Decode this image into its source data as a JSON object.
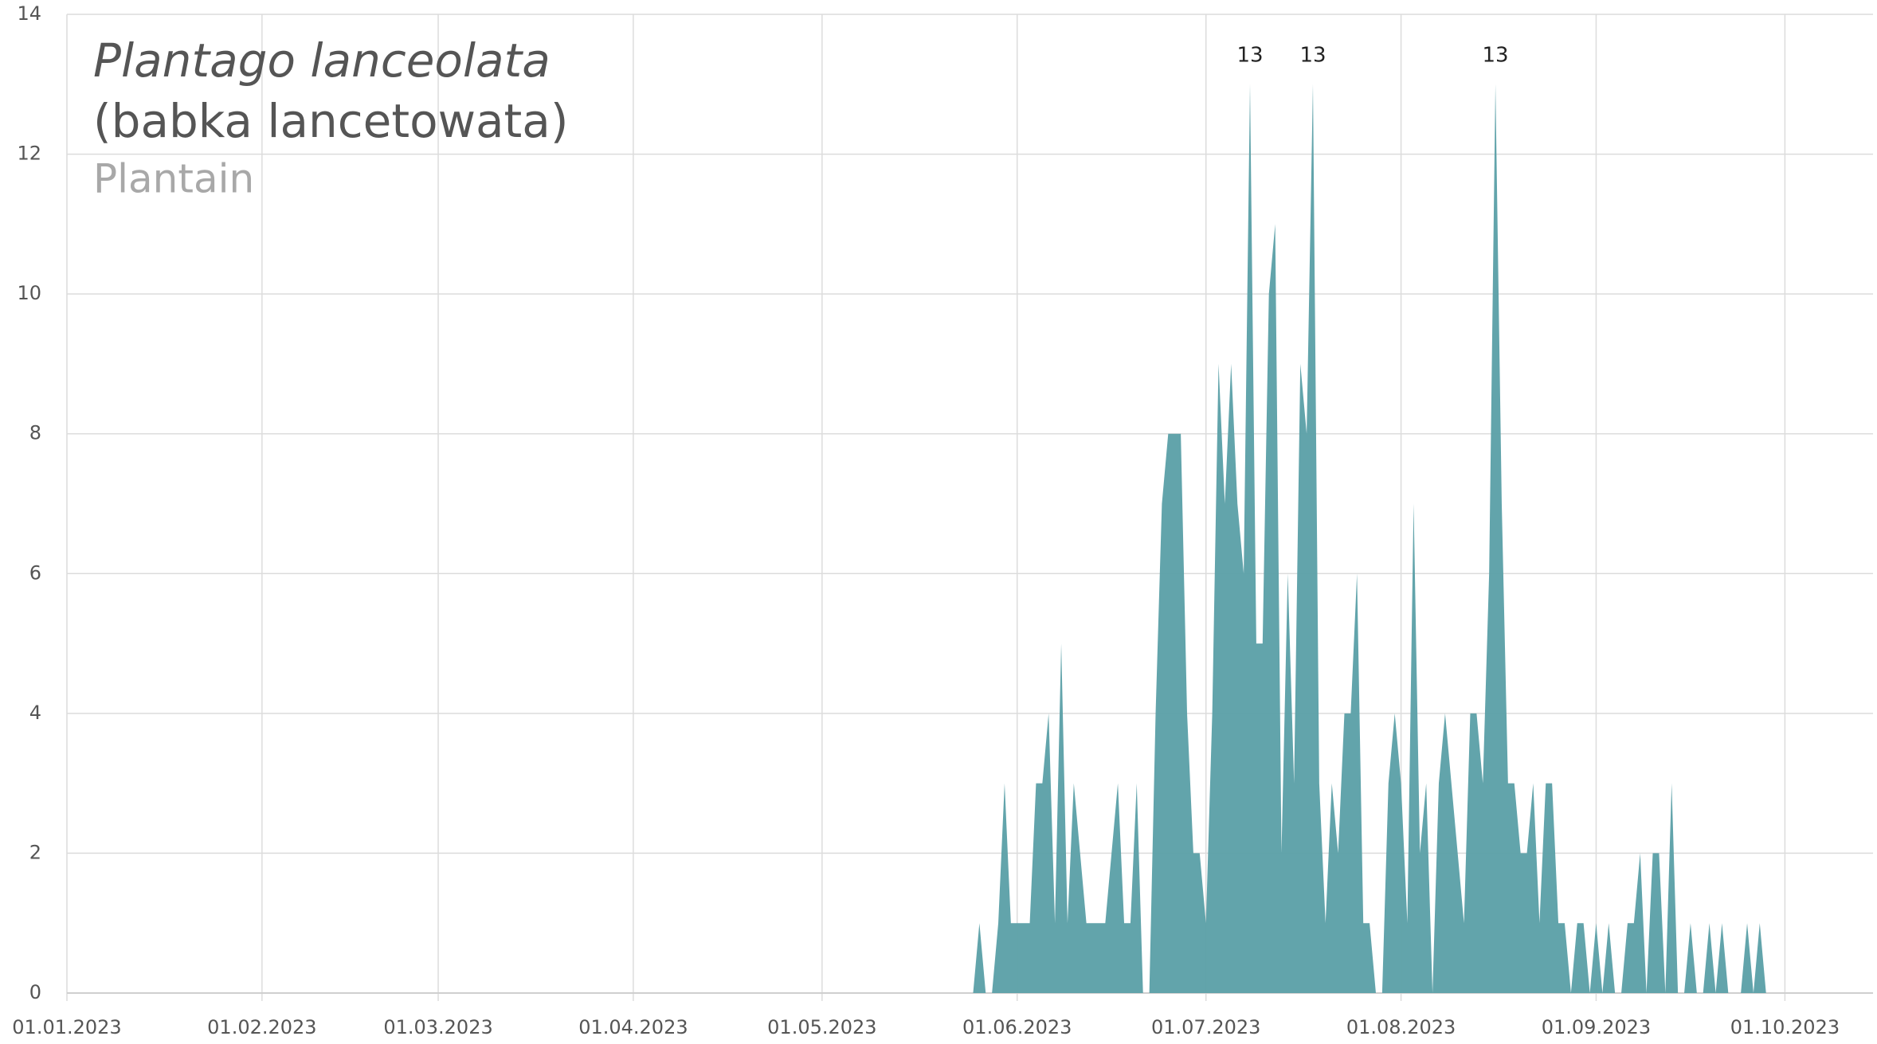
{
  "chart_data": {
    "type": "area",
    "title": "Plantago lanceolata",
    "subtitle": "(babka lancetowata)",
    "caption": "Plantain",
    "color": "#5a9fa6",
    "grid": true,
    "annotate_max": true,
    "xlim": [
      "01.01.2023",
      "15.10.2023"
    ],
    "xticks": [
      "01.01.2023",
      "01.02.2023",
      "01.03.2023",
      "01.04.2023",
      "01.05.2023",
      "01.06.2023",
      "01.07.2023",
      "01.08.2023",
      "01.09.2023",
      "01.10.2023"
    ],
    "ylim": [
      0,
      14
    ],
    "yticks": [
      0,
      2,
      4,
      6,
      8,
      10,
      12,
      14
    ],
    "x": [
      "24.05.2023",
      "25.05.2023",
      "26.05.2023",
      "27.05.2023",
      "28.05.2023",
      "29.05.2023",
      "30.05.2023",
      "31.05.2023",
      "01.06.2023",
      "02.06.2023",
      "03.06.2023",
      "04.06.2023",
      "05.06.2023",
      "06.06.2023",
      "07.06.2023",
      "08.06.2023",
      "09.06.2023",
      "10.06.2023",
      "11.06.2023",
      "12.06.2023",
      "13.06.2023",
      "14.06.2023",
      "15.06.2023",
      "16.06.2023",
      "17.06.2023",
      "18.06.2023",
      "19.06.2023",
      "20.06.2023",
      "21.06.2023",
      "22.06.2023",
      "23.06.2023",
      "24.06.2023",
      "25.06.2023",
      "26.06.2023",
      "27.06.2023",
      "28.06.2023",
      "29.06.2023",
      "30.06.2023",
      "01.07.2023",
      "02.07.2023",
      "03.07.2023",
      "04.07.2023",
      "05.07.2023",
      "06.07.2023",
      "07.07.2023",
      "08.07.2023",
      "09.07.2023",
      "10.07.2023",
      "11.07.2023",
      "12.07.2023",
      "13.07.2023",
      "14.07.2023",
      "15.07.2023",
      "16.07.2023",
      "17.07.2023",
      "18.07.2023",
      "19.07.2023",
      "20.07.2023",
      "21.07.2023",
      "22.07.2023",
      "23.07.2023",
      "24.07.2023",
      "25.07.2023",
      "26.07.2023",
      "27.07.2023",
      "28.07.2023",
      "29.07.2023",
      "30.07.2023",
      "31.07.2023",
      "01.08.2023",
      "02.08.2023",
      "03.08.2023",
      "04.08.2023",
      "05.08.2023",
      "06.08.2023",
      "07.08.2023",
      "08.08.2023",
      "09.08.2023",
      "10.08.2023",
      "11.08.2023",
      "12.08.2023",
      "13.08.2023",
      "14.08.2023",
      "15.08.2023",
      "16.08.2023",
      "17.08.2023",
      "18.08.2023",
      "19.08.2023",
      "20.08.2023",
      "21.08.2023",
      "22.08.2023",
      "23.08.2023",
      "24.08.2023",
      "25.08.2023",
      "26.08.2023",
      "27.08.2023",
      "28.08.2023",
      "29.08.2023",
      "30.08.2023",
      "31.08.2023",
      "01.09.2023",
      "02.09.2023",
      "03.09.2023",
      "04.09.2023",
      "05.09.2023",
      "06.09.2023",
      "07.09.2023",
      "08.09.2023",
      "09.09.2023",
      "10.09.2023",
      "11.09.2023",
      "12.09.2023",
      "13.09.2023",
      "14.09.2023",
      "15.09.2023",
      "16.09.2023",
      "17.09.2023",
      "18.09.2023",
      "19.09.2023",
      "20.09.2023",
      "21.09.2023",
      "22.09.2023",
      "23.09.2023",
      "24.09.2023",
      "25.09.2023",
      "26.09.2023",
      "27.09.2023",
      "28.09.2023"
    ],
    "values": [
      0,
      0,
      1,
      0,
      0,
      1,
      3,
      1,
      1,
      1,
      1,
      3,
      3,
      4,
      1,
      5,
      1,
      3,
      2,
      1,
      1,
      1,
      1,
      2,
      3,
      1,
      1,
      3,
      0,
      0,
      4,
      7,
      8,
      8,
      8,
      4,
      2,
      2,
      1,
      4,
      9,
      7,
      9,
      7,
      6,
      13,
      5,
      5,
      10,
      11,
      2,
      6,
      3,
      9,
      8,
      13,
      3,
      1,
      3,
      2,
      4,
      4,
      6,
      1,
      1,
      0,
      0,
      3,
      4,
      3,
      1,
      7,
      2,
      3,
      0,
      3,
      4,
      3,
      2,
      1,
      4,
      4,
      3,
      6,
      13,
      7,
      3,
      3,
      2,
      2,
      3,
      1,
      3,
      3,
      1,
      1,
      0,
      1,
      1,
      0,
      1,
      0,
      1,
      0,
      0,
      1,
      1,
      2,
      0,
      2,
      2,
      0,
      3,
      0,
      0,
      1,
      0,
      0,
      1,
      0,
      1,
      0,
      0,
      0,
      1,
      0,
      1,
      0
    ]
  }
}
